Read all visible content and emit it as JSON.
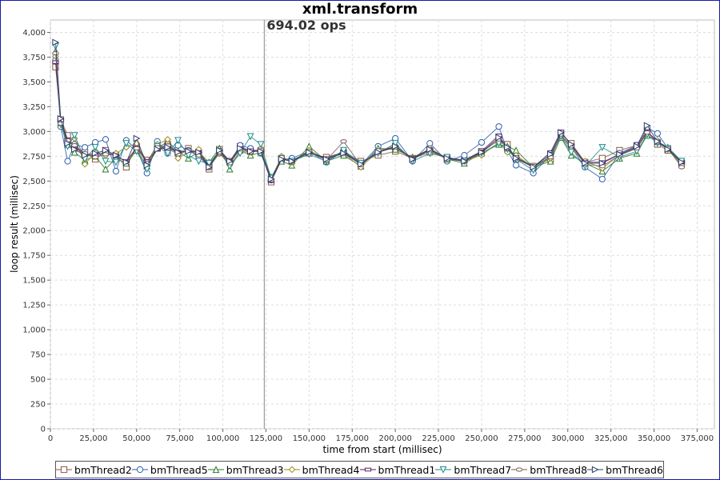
{
  "chart_data": {
    "type": "line",
    "title": "xml.transform",
    "xlabel": "time from start (millisec)",
    "ylabel": "loop result (millisec)",
    "xlim": [
      0,
      385000
    ],
    "ylim": [
      0,
      4125
    ],
    "x_ticks": [
      "0",
      "25,000",
      "50,000",
      "75,000",
      "100,000",
      "125,000",
      "150,000",
      "175,000",
      "200,000",
      "225,000",
      "250,000",
      "275,000",
      "300,000",
      "325,000",
      "350,000",
      "375,000"
    ],
    "x_tick_values": [
      0,
      25000,
      50000,
      75000,
      100000,
      125000,
      150000,
      175000,
      200000,
      225000,
      250000,
      275000,
      300000,
      325000,
      350000,
      375000
    ],
    "y_ticks": [
      "0",
      "250",
      "500",
      "750",
      "1,000",
      "1,250",
      "1,500",
      "1,750",
      "2,000",
      "2,250",
      "2,500",
      "2,750",
      "3,000",
      "3,250",
      "3,500",
      "3,750",
      "4,000"
    ],
    "y_tick_values": [
      0,
      250,
      500,
      750,
      1000,
      1250,
      1500,
      1750,
      2000,
      2250,
      2500,
      2750,
      3000,
      3250,
      3500,
      3750,
      4000
    ],
    "grid": true,
    "legend_position": "bottom",
    "marker": {
      "x": 124000,
      "label": "694.02 ops"
    },
    "series": [
      {
        "name": "bmThread2",
        "color": "#8b5a3c",
        "symbol": "square",
        "x": [
          3000,
          6000,
          10000,
          14000,
          20000,
          26000,
          32000,
          38000,
          44000,
          50000,
          56000,
          62000,
          68000,
          74000,
          80000,
          86000,
          92000,
          98000,
          104000,
          110000,
          116000,
          122000,
          128000,
          134000,
          140000,
          150000,
          160000,
          170000,
          180000,
          190000,
          200000,
          210000,
          220000,
          230000,
          240000,
          250000,
          260000,
          265000,
          270000,
          280000,
          290000,
          296000,
          302000,
          310000,
          320000,
          330000,
          340000,
          346000,
          352000,
          358000,
          366000
        ],
        "values": [
          3650,
          3120,
          2960,
          2830,
          2790,
          2720,
          2810,
          2760,
          2640,
          2850,
          2710,
          2830,
          2870,
          2780,
          2830,
          2780,
          2620,
          2820,
          2700,
          2850,
          2800,
          2810,
          2490,
          2720,
          2700,
          2780,
          2740,
          2790,
          2700,
          2760,
          2800,
          2730,
          2790,
          2740,
          2710,
          2800,
          2910,
          2870,
          2720,
          2650,
          2720,
          2980,
          2880,
          2690,
          2730,
          2810,
          2860,
          3010,
          2870,
          2810,
          2680
        ]
      },
      {
        "name": "bmThread5",
        "color": "#2a5db0",
        "symbol": "circle",
        "x": [
          3000,
          6000,
          10000,
          14000,
          20000,
          26000,
          32000,
          38000,
          44000,
          50000,
          56000,
          62000,
          68000,
          74000,
          80000,
          86000,
          92000,
          98000,
          104000,
          110000,
          116000,
          122000,
          128000,
          134000,
          140000,
          150000,
          160000,
          170000,
          180000,
          190000,
          200000,
          210000,
          220000,
          230000,
          240000,
          250000,
          260000,
          265000,
          270000,
          280000,
          290000,
          296000,
          302000,
          310000,
          320000,
          330000,
          340000,
          346000,
          352000,
          358000,
          366000
        ],
        "values": [
          3720,
          3050,
          2700,
          2870,
          2840,
          2890,
          2920,
          2600,
          2910,
          2820,
          2580,
          2900,
          2780,
          2860,
          2810,
          2750,
          2640,
          2780,
          2690,
          2860,
          2830,
          2780,
          2510,
          2710,
          2730,
          2800,
          2690,
          2800,
          2660,
          2850,
          2930,
          2700,
          2880,
          2700,
          2760,
          2890,
          3050,
          2800,
          2660,
          2580,
          2760,
          2960,
          2840,
          2640,
          2520,
          2780,
          2860,
          3040,
          2980,
          2830,
          2700
        ]
      },
      {
        "name": "bmThread3",
        "color": "#2a7a2a",
        "symbol": "triangle-up",
        "x": [
          3000,
          6000,
          10000,
          14000,
          20000,
          26000,
          32000,
          38000,
          44000,
          50000,
          56000,
          62000,
          68000,
          74000,
          80000,
          86000,
          92000,
          98000,
          104000,
          110000,
          116000,
          122000,
          128000,
          134000,
          140000,
          150000,
          160000,
          170000,
          180000,
          190000,
          200000,
          210000,
          220000,
          230000,
          240000,
          250000,
          260000,
          265000,
          270000,
          280000,
          290000,
          296000,
          302000,
          310000,
          320000,
          330000,
          340000,
          346000,
          352000,
          358000,
          366000
        ],
        "values": [
          3810,
          3090,
          2870,
          2790,
          2710,
          2750,
          2620,
          2730,
          2680,
          2810,
          2650,
          2830,
          2900,
          2800,
          2730,
          2790,
          2690,
          2830,
          2620,
          2810,
          2760,
          2790,
          2540,
          2700,
          2660,
          2850,
          2700,
          2760,
          2650,
          2830,
          2820,
          2740,
          2820,
          2720,
          2680,
          2780,
          2870,
          2850,
          2810,
          2640,
          2700,
          2940,
          2760,
          2680,
          2600,
          2730,
          2780,
          2960,
          2900,
          2840,
          2700
        ]
      },
      {
        "name": "bmThread4",
        "color": "#9a8a1a",
        "symbol": "diamond",
        "x": [
          3000,
          6000,
          10000,
          14000,
          20000,
          26000,
          32000,
          38000,
          44000,
          50000,
          56000,
          62000,
          68000,
          74000,
          80000,
          86000,
          92000,
          98000,
          104000,
          110000,
          116000,
          122000,
          128000,
          134000,
          140000,
          150000,
          160000,
          170000,
          180000,
          190000,
          200000,
          210000,
          220000,
          230000,
          240000,
          250000,
          260000,
          265000,
          270000,
          280000,
          290000,
          296000,
          302000,
          310000,
          320000,
          330000,
          340000,
          346000,
          352000,
          358000,
          366000
        ],
        "values": [
          3760,
          3100,
          2900,
          2930,
          2670,
          2790,
          2760,
          2780,
          2840,
          2880,
          2690,
          2870,
          2920,
          2730,
          2790,
          2820,
          2640,
          2780,
          2660,
          2800,
          2790,
          2830,
          2520,
          2750,
          2690,
          2810,
          2720,
          2780,
          2640,
          2800,
          2860,
          2720,
          2830,
          2730,
          2700,
          2760,
          2890,
          2790,
          2760,
          2640,
          2730,
          2960,
          2820,
          2700,
          2630,
          2760,
          2830,
          2990,
          2910,
          2820,
          2660
        ]
      },
      {
        "name": "bmThread1",
        "color": "#5a1a6a",
        "symbol": "square-line",
        "x": [
          3000,
          6000,
          10000,
          14000,
          20000,
          26000,
          32000,
          38000,
          44000,
          50000,
          56000,
          62000,
          68000,
          74000,
          80000,
          86000,
          92000,
          98000,
          104000,
          110000,
          116000,
          122000,
          128000,
          134000,
          140000,
          150000,
          160000,
          170000,
          180000,
          190000,
          200000,
          210000,
          220000,
          230000,
          240000,
          250000,
          260000,
          265000,
          270000,
          280000,
          290000,
          296000,
          302000,
          310000,
          320000,
          330000,
          340000,
          346000,
          352000,
          358000,
          366000
        ],
        "values": [
          3700,
          3110,
          2920,
          2850,
          2760,
          2760,
          2790,
          2750,
          2700,
          2840,
          2700,
          2820,
          2860,
          2790,
          2800,
          2790,
          2660,
          2800,
          2690,
          2830,
          2810,
          2800,
          2500,
          2720,
          2710,
          2790,
          2730,
          2790,
          2680,
          2790,
          2840,
          2730,
          2820,
          2730,
          2710,
          2800,
          2960,
          2830,
          2740,
          2640,
          2790,
          3000,
          2860,
          2690,
          2690,
          2770,
          2840,
          3000,
          2900,
          2830,
          2690
        ]
      },
      {
        "name": "bmThread7",
        "color": "#1a8a8a",
        "symbol": "triangle-down",
        "x": [
          3000,
          6000,
          10000,
          14000,
          20000,
          26000,
          32000,
          38000,
          44000,
          50000,
          56000,
          62000,
          68000,
          74000,
          80000,
          86000,
          92000,
          98000,
          104000,
          110000,
          116000,
          122000,
          128000,
          134000,
          140000,
          150000,
          160000,
          170000,
          180000,
          190000,
          200000,
          210000,
          220000,
          230000,
          240000,
          250000,
          260000,
          265000,
          270000,
          280000,
          290000,
          296000,
          302000,
          310000,
          320000,
          330000,
          340000,
          346000,
          352000,
          358000,
          366000
        ],
        "values": [
          3860,
          3070,
          2850,
          2960,
          2720,
          2840,
          2700,
          2690,
          2880,
          2800,
          2620,
          2850,
          2780,
          2910,
          2760,
          2700,
          2680,
          2800,
          2650,
          2780,
          2950,
          2870,
          2530,
          2730,
          2700,
          2770,
          2700,
          2810,
          2680,
          2780,
          2880,
          2700,
          2780,
          2740,
          2700,
          2780,
          2880,
          2820,
          2720,
          2610,
          2760,
          2950,
          2790,
          2650,
          2840,
          2740,
          2800,
          2970,
          2880,
          2830,
          2700
        ]
      },
      {
        "name": "bmThread8",
        "color": "#7a5a5a",
        "symbol": "ellipse",
        "x": [
          3000,
          6000,
          10000,
          14000,
          20000,
          26000,
          32000,
          38000,
          44000,
          50000,
          56000,
          62000,
          68000,
          74000,
          80000,
          86000,
          92000,
          98000,
          104000,
          110000,
          116000,
          122000,
          128000,
          134000,
          140000,
          150000,
          160000,
          170000,
          180000,
          190000,
          200000,
          210000,
          220000,
          230000,
          240000,
          250000,
          260000,
          265000,
          270000,
          280000,
          290000,
          296000,
          302000,
          310000,
          320000,
          330000,
          340000,
          346000,
          352000,
          358000,
          366000
        ],
        "values": [
          3790,
          3080,
          2910,
          2860,
          2780,
          2740,
          2770,
          2760,
          2690,
          2830,
          2680,
          2840,
          2830,
          2770,
          2810,
          2760,
          2650,
          2790,
          2680,
          2820,
          2790,
          2810,
          2510,
          2740,
          2700,
          2800,
          2710,
          2900,
          2660,
          2810,
          2840,
          2720,
          2810,
          2720,
          2700,
          2790,
          2920,
          2830,
          2740,
          2650,
          2740,
          2970,
          2850,
          2670,
          2650,
          2760,
          2830,
          2990,
          2890,
          2830,
          2640
        ]
      },
      {
        "name": "bmThread6",
        "color": "#2a3a6a",
        "symbol": "triangle-right",
        "x": [
          3000,
          6000,
          10000,
          14000,
          20000,
          26000,
          32000,
          38000,
          44000,
          50000,
          56000,
          62000,
          68000,
          74000,
          80000,
          86000,
          92000,
          98000,
          104000,
          110000,
          116000,
          122000,
          128000,
          134000,
          140000,
          150000,
          160000,
          170000,
          180000,
          190000,
          200000,
          210000,
          220000,
          230000,
          240000,
          250000,
          260000,
          265000,
          270000,
          280000,
          290000,
          296000,
          302000,
          310000,
          320000,
          330000,
          340000,
          346000,
          352000,
          358000,
          366000
        ],
        "values": [
          3900,
          3130,
          2880,
          2820,
          2760,
          2780,
          2810,
          2760,
          2690,
          2930,
          2660,
          2820,
          2840,
          2790,
          2800,
          2790,
          2640,
          2810,
          2700,
          2830,
          2800,
          2800,
          2520,
          2720,
          2700,
          2790,
          2720,
          2780,
          2670,
          2790,
          2850,
          2720,
          2820,
          2730,
          2700,
          2790,
          2940,
          2840,
          2730,
          2640,
          2770,
          2990,
          2870,
          2680,
          2680,
          2770,
          2850,
          3060,
          2900,
          2820,
          2690
        ]
      }
    ]
  }
}
